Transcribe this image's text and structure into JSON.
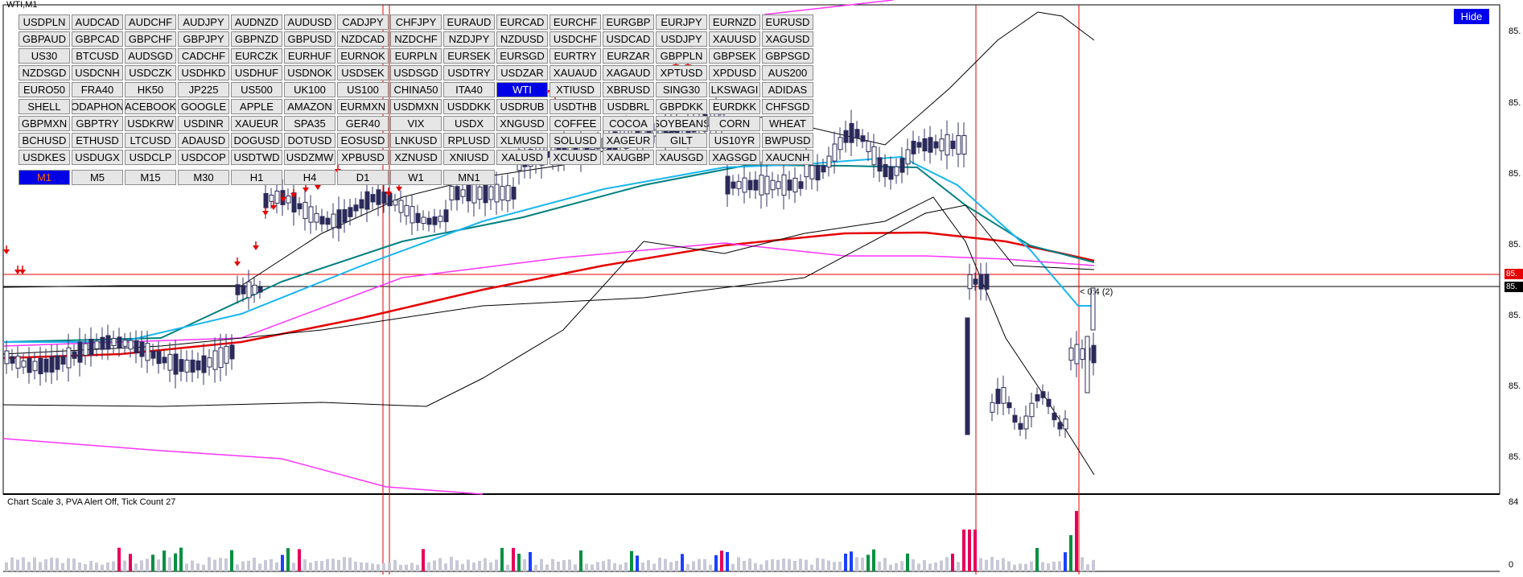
{
  "chart": {
    "title": "WTI,M1",
    "hide_label": "Hide",
    "status_text": "Chart Scale  3,   PVA Alert Off,   Tick Count  27",
    "cursor_label": "< 0:4 (2)",
    "price_axis_labels": [
      "85.",
      "85.",
      "85.",
      "85.",
      "85.",
      "85.",
      "85."
    ],
    "price_tag_red": "85.",
    "price_tag_black": "85.",
    "volume_axis": {
      "top": "84",
      "bottom": "0"
    },
    "colors": {
      "ma_red": "#e60000",
      "ma_cyan": "#19b6f0",
      "ma_teal": "#008080",
      "band_magenta": "#ff33ff",
      "band_black": "#000000",
      "vline": "#e60000"
    }
  },
  "symbols": [
    "USDPLN",
    "AUDCAD",
    "AUDCHF",
    "AUDJPY",
    "AUDNZD",
    "AUDUSD",
    "CADJPY",
    "CHFJPY",
    "EURAUD",
    "EURCAD",
    "EURCHF",
    "EURGBP",
    "EURJPY",
    "EURNZD",
    "EURUSD",
    "GBPAUD",
    "GBPCAD",
    "GBPCHF",
    "GBPJPY",
    "GBPNZD",
    "GBPUSD",
    "NZDCAD",
    "NZDCHF",
    "NZDJPY",
    "NZDUSD",
    "USDCHF",
    "USDCAD",
    "USDJPY",
    "XAUUSD",
    "XAGUSD",
    "US30",
    "BTCUSD",
    "AUDSGD",
    "CADCHF",
    "EURCZK",
    "EURHUF",
    "EURNOK",
    "EURPLN",
    "EURSEK",
    "EURSGD",
    "EURTRY",
    "EURZAR",
    "GBPPLN",
    "GBPSEK",
    "GBPSGD",
    "NZDSGD",
    "USDCNH",
    "USDCZK",
    "USDHKD",
    "USDHUF",
    "USDNOK",
    "USDSEK",
    "USDSGD",
    "USDTRY",
    "USDZAR",
    "XAUAUD",
    "XAGAUD",
    "XPTUSD",
    "XPDUSD",
    "AUS200",
    "EURO50",
    "FRA40",
    "HK50",
    "JP225",
    "US500",
    "UK100",
    "US100",
    "CHINA50",
    "ITA40",
    "WTI",
    "XTIUSD",
    "XBRUSD",
    "SING30",
    "LKSWAGI",
    "ADIDAS",
    "SHELL",
    "ODAPHON",
    "ACEBOOK",
    "GOOGLE",
    "APPLE",
    "AMAZON",
    "EURMXN",
    "USDMXN",
    "USDDKK",
    "USDRUB",
    "USDTHB",
    "USDBRL",
    "GBPDKK",
    "EURDKK",
    "CHFSGD",
    "GBPMXN",
    "GBPTRY",
    "USDKRW",
    "USDINR",
    "XAUEUR",
    "SPA35",
    "GER40",
    "VIX",
    "USDX",
    "XNGUSD",
    "COFFEE",
    "COCOA",
    "SOYBEANS",
    "CORN",
    "WHEAT",
    "BCHUSD",
    "ETHUSD",
    "LTCUSD",
    "ADAUSD",
    "DOGUSD",
    "DOTUSD",
    "EOSUSD",
    "LNKUSD",
    "RPLUSD",
    "XLMUSD",
    "SOLUSD",
    "XAGEUR",
    "GILT",
    "US10YR",
    "BWPUSD",
    "USDKES",
    "USDUGX",
    "USDCLP",
    "USDCOP",
    "USDTWD",
    "USDZMW",
    "XPBUSD",
    "XZNUSD",
    "XNIUSD",
    "XALUSD",
    "XCUUSD",
    "XAUGBP",
    "XAUSGD",
    "XAGSGD",
    "XAUCNH"
  ],
  "active_symbol": "WTI",
  "timeframes": [
    "M1",
    "M5",
    "M15",
    "M30",
    "H1",
    "H4",
    "D1",
    "W1",
    "MN1"
  ],
  "active_timeframe": "M1"
}
